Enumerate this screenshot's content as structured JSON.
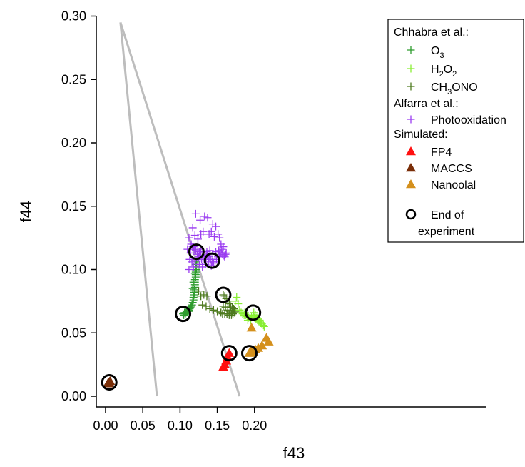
{
  "chart_data": {
    "type": "scatter",
    "title": "",
    "xlabel": "f43",
    "ylabel": "f44",
    "xlim": [
      -0.005,
      0.22
    ],
    "ylim": [
      -0.005,
      0.3
    ],
    "xticks": [
      "0.00",
      "0.05",
      "0.10",
      "0.15",
      "0.20"
    ],
    "yticks": [
      "0.00",
      "0.05",
      "0.10",
      "0.15",
      "0.20",
      "0.25",
      "0.30"
    ],
    "grid": false,
    "legend_position": "top-right",
    "legend": {
      "group1_title": "Chhabra et al.:",
      "group2_title": "Alfarra et al.:",
      "group3_title": "Simulated:",
      "items": [
        {
          "key": "o3",
          "text": "O",
          "sub": "3",
          "marker": "plus",
          "color": "#2e9c2e"
        },
        {
          "key": "h2o2",
          "text": "H",
          "sub": "2",
          "text2": "O",
          "sub2": "2",
          "marker": "plus",
          "color": "#88ee33"
        },
        {
          "key": "ch3ono",
          "text": "CH",
          "sub": "3",
          "text2": "ONO",
          "marker": "plus",
          "color": "#4d7a1e"
        },
        {
          "key": "photo",
          "text": "Photooxidation",
          "marker": "plus",
          "color": "#9a3cf0"
        },
        {
          "key": "fp4",
          "text": "FP4",
          "marker": "triangle",
          "color": "#ff1010"
        },
        {
          "key": "maccs",
          "text": "MACCS",
          "marker": "triangle",
          "color": "#7a2e08"
        },
        {
          "key": "nanoolal",
          "text": "Nanoolal",
          "marker": "triangle",
          "color": "#d4901c"
        }
      ],
      "end_line1": "End of",
      "end_line2": "experiment"
    },
    "triangle_lines": [
      {
        "x1": 0.02,
        "y1": 0.295,
        "x2": 0.069,
        "y2": 0.0
      },
      {
        "x1": 0.02,
        "y1": 0.295,
        "x2": 0.18,
        "y2": 0.0
      }
    ],
    "series": [
      {
        "key": "o3",
        "name": "O3",
        "marker": "plus",
        "color": "#2e9c2e",
        "points": [
          [
            0.104,
            0.065
          ],
          [
            0.106,
            0.066
          ],
          [
            0.108,
            0.066
          ],
          [
            0.11,
            0.067
          ],
          [
            0.112,
            0.068
          ],
          [
            0.113,
            0.069
          ],
          [
            0.114,
            0.07
          ],
          [
            0.115,
            0.071
          ],
          [
            0.116,
            0.072
          ],
          [
            0.117,
            0.074
          ],
          [
            0.118,
            0.076
          ],
          [
            0.118,
            0.078
          ],
          [
            0.119,
            0.08
          ],
          [
            0.119,
            0.082
          ],
          [
            0.119,
            0.084
          ],
          [
            0.12,
            0.086
          ],
          [
            0.12,
            0.088
          ],
          [
            0.12,
            0.09
          ],
          [
            0.12,
            0.092
          ],
          [
            0.121,
            0.094
          ],
          [
            0.121,
            0.096
          ],
          [
            0.121,
            0.098
          ],
          [
            0.122,
            0.1
          ],
          [
            0.122,
            0.102
          ],
          [
            0.121,
            0.104
          ],
          [
            0.122,
            0.106
          ],
          [
            0.12,
            0.097
          ],
          [
            0.121,
            0.099
          ],
          [
            0.118,
            0.09
          ],
          [
            0.117,
            0.085
          ],
          [
            0.105,
            0.064
          ],
          [
            0.107,
            0.065
          ],
          [
            0.109,
            0.067
          ],
          [
            0.111,
            0.068
          ],
          [
            0.112,
            0.067
          ]
        ]
      },
      {
        "key": "ch3ono",
        "name": "CH3ONO",
        "marker": "plus",
        "color": "#4d7a1e",
        "points": [
          [
            0.125,
            0.083
          ],
          [
            0.128,
            0.079
          ],
          [
            0.132,
            0.08
          ],
          [
            0.136,
            0.079
          ],
          [
            0.13,
            0.072
          ],
          [
            0.135,
            0.071
          ],
          [
            0.14,
            0.069
          ],
          [
            0.145,
            0.068
          ],
          [
            0.15,
            0.067
          ],
          [
            0.154,
            0.066
          ],
          [
            0.158,
            0.08
          ],
          [
            0.16,
            0.079
          ],
          [
            0.162,
            0.077
          ],
          [
            0.164,
            0.075
          ],
          [
            0.166,
            0.073
          ],
          [
            0.168,
            0.071
          ],
          [
            0.17,
            0.07
          ],
          [
            0.172,
            0.069
          ],
          [
            0.173,
            0.068
          ],
          [
            0.174,
            0.067
          ],
          [
            0.173,
            0.066
          ],
          [
            0.171,
            0.065
          ],
          [
            0.169,
            0.064
          ],
          [
            0.166,
            0.064
          ],
          [
            0.163,
            0.065
          ],
          [
            0.16,
            0.065
          ],
          [
            0.157,
            0.065
          ],
          [
            0.155,
            0.066
          ],
          [
            0.158,
            0.071
          ],
          [
            0.161,
            0.07
          ],
          [
            0.164,
            0.068
          ],
          [
            0.167,
            0.067
          ],
          [
            0.17,
            0.066
          ]
        ]
      },
      {
        "key": "h2o2",
        "name": "H2O2",
        "marker": "plus",
        "color": "#88ee33",
        "points": [
          [
            0.174,
            0.075
          ],
          [
            0.176,
            0.078
          ],
          [
            0.178,
            0.073
          ],
          [
            0.18,
            0.068
          ],
          [
            0.182,
            0.066
          ],
          [
            0.184,
            0.065
          ],
          [
            0.186,
            0.064
          ],
          [
            0.188,
            0.064
          ],
          [
            0.19,
            0.063
          ],
          [
            0.192,
            0.062
          ],
          [
            0.194,
            0.062
          ],
          [
            0.196,
            0.063
          ],
          [
            0.198,
            0.064
          ],
          [
            0.2,
            0.062
          ],
          [
            0.202,
            0.061
          ],
          [
            0.204,
            0.06
          ],
          [
            0.206,
            0.059
          ],
          [
            0.208,
            0.058
          ],
          [
            0.21,
            0.057
          ],
          [
            0.212,
            0.056
          ],
          [
            0.213,
            0.055
          ],
          [
            0.199,
            0.066
          ],
          [
            0.201,
            0.064
          ],
          [
            0.203,
            0.062
          ],
          [
            0.205,
            0.061
          ],
          [
            0.207,
            0.06
          ],
          [
            0.209,
            0.058
          ],
          [
            0.187,
            0.066
          ],
          [
            0.191,
            0.06
          ],
          [
            0.195,
            0.06
          ]
        ]
      },
      {
        "key": "photo",
        "name": "Photooxidation",
        "marker": "plus",
        "color": "#9a3cf0",
        "points": [
          [
            0.112,
            0.125
          ],
          [
            0.115,
            0.12
          ],
          [
            0.117,
            0.118
          ],
          [
            0.119,
            0.116
          ],
          [
            0.121,
            0.115
          ],
          [
            0.123,
            0.112
          ],
          [
            0.125,
            0.11
          ],
          [
            0.127,
            0.109
          ],
          [
            0.129,
            0.108
          ],
          [
            0.131,
            0.108
          ],
          [
            0.133,
            0.109
          ],
          [
            0.135,
            0.11
          ],
          [
            0.137,
            0.111
          ],
          [
            0.139,
            0.11
          ],
          [
            0.141,
            0.108
          ],
          [
            0.143,
            0.106
          ],
          [
            0.145,
            0.105
          ],
          [
            0.147,
            0.106
          ],
          [
            0.149,
            0.108
          ],
          [
            0.151,
            0.11
          ],
          [
            0.153,
            0.111
          ],
          [
            0.155,
            0.113
          ],
          [
            0.157,
            0.112
          ],
          [
            0.159,
            0.111
          ],
          [
            0.16,
            0.11
          ],
          [
            0.161,
            0.112
          ],
          [
            0.162,
            0.113
          ],
          [
            0.118,
            0.118
          ],
          [
            0.124,
            0.116
          ],
          [
            0.128,
            0.114
          ],
          [
            0.132,
            0.113
          ],
          [
            0.136,
            0.114
          ],
          [
            0.14,
            0.115
          ],
          [
            0.144,
            0.112
          ],
          [
            0.148,
            0.114
          ],
          [
            0.152,
            0.115
          ],
          [
            0.156,
            0.116
          ],
          [
            0.113,
            0.108
          ],
          [
            0.116,
            0.106
          ],
          [
            0.118,
            0.102
          ],
          [
            0.112,
            0.1
          ],
          [
            0.12,
            0.107
          ],
          [
            0.126,
            0.104
          ],
          [
            0.13,
            0.102
          ],
          [
            0.134,
            0.104
          ],
          [
            0.11,
            0.116
          ],
          [
            0.114,
            0.113
          ],
          [
            0.121,
            0.144
          ],
          [
            0.127,
            0.139
          ],
          [
            0.133,
            0.142
          ],
          [
            0.137,
            0.141
          ],
          [
            0.142,
            0.13
          ],
          [
            0.144,
            0.136
          ],
          [
            0.148,
            0.134
          ],
          [
            0.151,
            0.128
          ],
          [
            0.155,
            0.12
          ],
          [
            0.139,
            0.128
          ],
          [
            0.128,
            0.128
          ],
          [
            0.124,
            0.124
          ],
          [
            0.117,
            0.133
          ],
          [
            0.12,
            0.127
          ],
          [
            0.131,
            0.13
          ],
          [
            0.146,
            0.126
          ],
          [
            0.153,
            0.125
          ],
          [
            0.158,
            0.118
          ],
          [
            0.126,
            0.114
          ],
          [
            0.138,
            0.106
          ],
          [
            0.142,
            0.103
          ]
        ]
      },
      {
        "key": "fp4",
        "name": "FP4",
        "marker": "triangle",
        "color": "#ff1010",
        "points": [
          [
            0.158,
            0.023
          ],
          [
            0.16,
            0.025
          ],
          [
            0.162,
            0.028
          ],
          [
            0.164,
            0.031
          ],
          [
            0.166,
            0.034
          ]
        ]
      },
      {
        "key": "maccs",
        "name": "MACCS",
        "marker": "triangle",
        "color": "#7a2e08",
        "points": [
          [
            0.004,
            0.01
          ],
          [
            0.005,
            0.011
          ],
          [
            0.006,
            0.012
          ],
          [
            0.003,
            0.01
          ]
        ]
      },
      {
        "key": "nanoolal",
        "name": "Nanoolal",
        "marker": "triangle",
        "color": "#d4901c",
        "points": [
          [
            0.193,
            0.034
          ],
          [
            0.196,
            0.054
          ],
          [
            0.198,
            0.035
          ],
          [
            0.201,
            0.037
          ],
          [
            0.205,
            0.038
          ],
          [
            0.21,
            0.04
          ],
          [
            0.216,
            0.046
          ],
          [
            0.219,
            0.043
          ],
          [
            0.195,
            0.036
          ]
        ]
      }
    ],
    "end_markers": [
      [
        0.005,
        0.011
      ],
      [
        0.104,
        0.065
      ],
      [
        0.122,
        0.114
      ],
      [
        0.143,
        0.107
      ],
      [
        0.158,
        0.08
      ],
      [
        0.166,
        0.034
      ],
      [
        0.193,
        0.034
      ],
      [
        0.198,
        0.066
      ]
    ]
  }
}
